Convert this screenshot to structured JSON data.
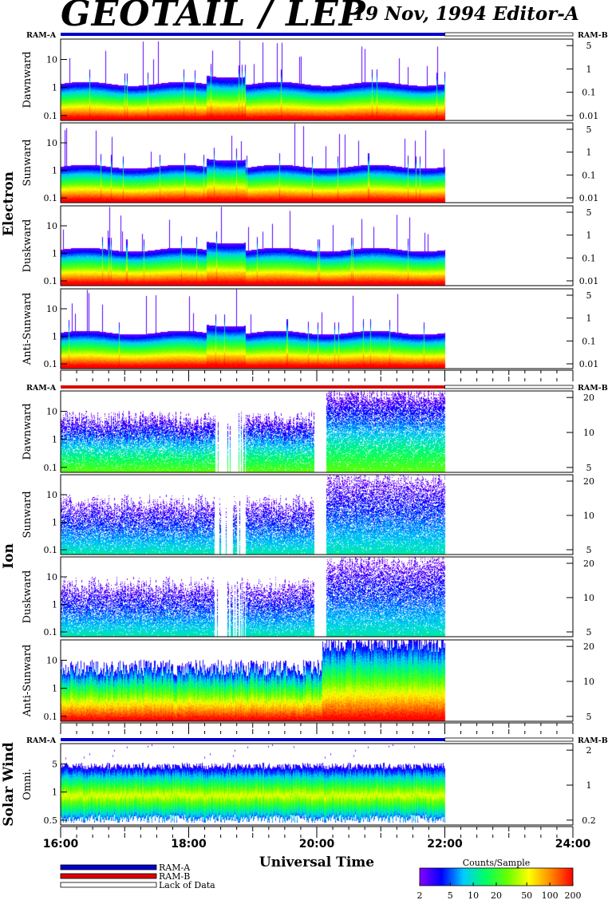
{
  "header": {
    "title": "GEOTAIL / LEP",
    "subtitle": "19 Nov, 1994   Editor-A"
  },
  "chart_data": {
    "type": "heatmap",
    "xlabel": "Universal Time",
    "x_ticks": [
      "16:00",
      "18:00",
      "20:00",
      "22:00",
      "24:00"
    ],
    "x_range_hours": [
      16,
      24
    ],
    "data_end_hour": 22.0,
    "groups": [
      {
        "name": "Electron",
        "ram_left": "RAM-A",
        "ram_right": "RAM-B",
        "ram_bar": {
          "mode": "RAM-A",
          "until_hour": 22.0
        },
        "panels": [
          {
            "name": "Dawnward",
            "left_ticks": [
              "10",
              "1",
              "0.1"
            ],
            "right_ticks": [
              "5",
              "1",
              "0.1",
              "0.01"
            ],
            "profile": "electron"
          },
          {
            "name": "Sunward",
            "left_ticks": [
              "10",
              "1",
              "0.1"
            ],
            "right_ticks": [
              "5",
              "1",
              "0.1",
              "0.01"
            ],
            "profile": "electron"
          },
          {
            "name": "Duskward",
            "left_ticks": [
              "10",
              "1",
              "0.1"
            ],
            "right_ticks": [
              "5",
              "1",
              "0.1",
              "0.01"
            ],
            "profile": "electron"
          },
          {
            "name": "Anti-Sunward",
            "left_ticks": [
              "10",
              "1",
              "0.1"
            ],
            "right_ticks": [
              "5",
              "1",
              "0.1",
              "0.01"
            ],
            "profile": "electron"
          }
        ]
      },
      {
        "name": "Ion",
        "ram_left": "RAM-A",
        "ram_right": "RAM-B",
        "ram_bar": {
          "mode": "RAM-B",
          "until_hour": 22.0
        },
        "panels": [
          {
            "name": "Dawnward",
            "left_ticks": [
              "10",
              "1",
              "0.1"
            ],
            "right_ticks": [
              "20",
              "10",
              "5"
            ],
            "profile": "ion"
          },
          {
            "name": "Sunward",
            "left_ticks": [
              "10",
              "1",
              "0.1"
            ],
            "right_ticks": [
              "20",
              "10",
              "5"
            ],
            "profile": "ion-sparse"
          },
          {
            "name": "Duskward",
            "left_ticks": [
              "10",
              "1",
              "0.1"
            ],
            "right_ticks": [
              "20",
              "10",
              "5"
            ],
            "profile": "ion-sparse"
          },
          {
            "name": "Anti-Sunward",
            "left_ticks": [
              "10",
              "1",
              "0.1"
            ],
            "right_ticks": [
              "20",
              "10",
              "5"
            ],
            "profile": "ion-dense"
          }
        ]
      },
      {
        "name": "Solar Wind",
        "ram_left": "RAM-A",
        "ram_right": "RAM-B",
        "ram_bar": {
          "mode": "RAM-A",
          "until_hour": 22.0
        },
        "panels": [
          {
            "name": "Omni.",
            "left_ticks": [
              "5",
              "1",
              "0.5"
            ],
            "right_ticks": [
              "2",
              "1",
              "0.2"
            ],
            "profile": "solarwind"
          }
        ]
      }
    ],
    "legend": {
      "items": [
        {
          "label": "RAM-A",
          "color": "#0000cc"
        },
        {
          "label": "RAM-B",
          "color": "#dd0000"
        },
        {
          "label": "Lack of Data",
          "color": "#ffffff"
        }
      ]
    },
    "colorbar": {
      "title": "Counts/Sample",
      "ticks": [
        "2",
        "5",
        "10",
        "20",
        "50",
        "100",
        "200"
      ],
      "tick_values": [
        2,
        5,
        10,
        20,
        50,
        100,
        200
      ],
      "range": [
        2,
        200
      ],
      "colors": [
        "#8800ff",
        "#0000ff",
        "#00ccff",
        "#00ff66",
        "#66ff00",
        "#ffff00",
        "#ff8800",
        "#ff0000"
      ]
    }
  }
}
